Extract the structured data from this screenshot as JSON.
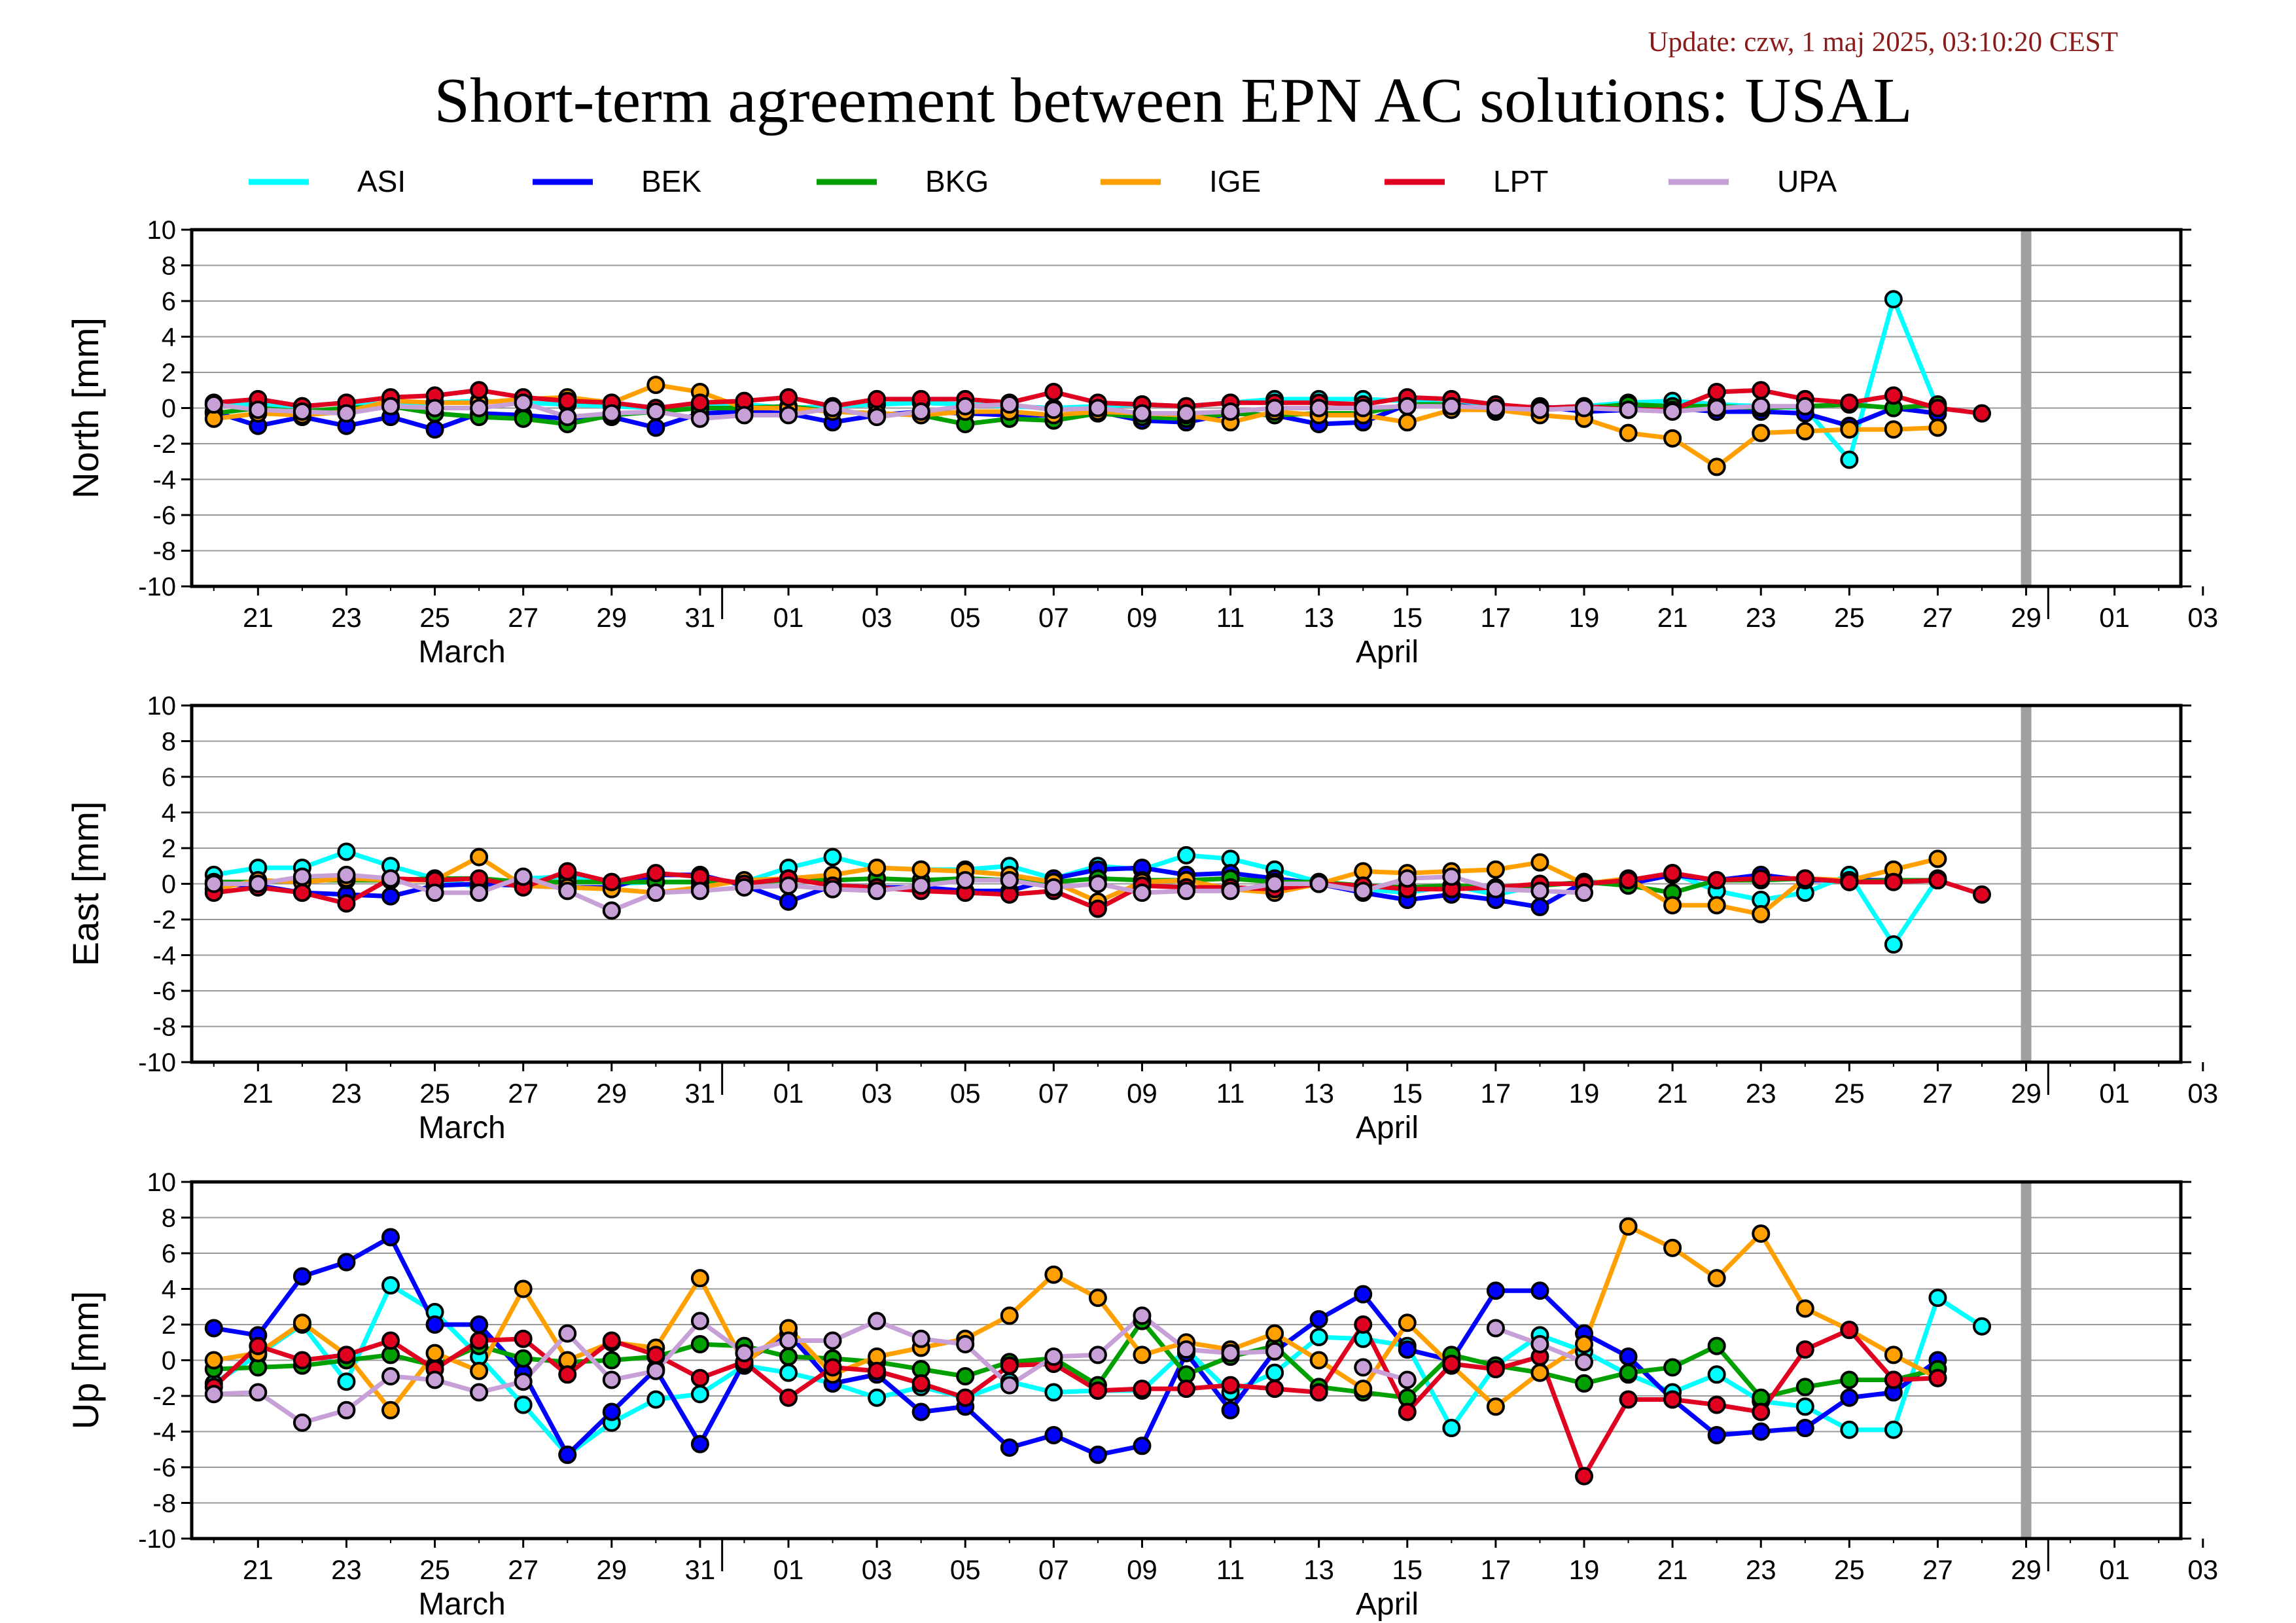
{
  "update": "Update: czw, 1 maj 2025, 03:10:20 CEST",
  "title": "Short-term agreement between EPN AC solutions: USAL",
  "colors": {
    "ASI": "#00ffff",
    "BEK": "#0000ff",
    "BKG": "#00a000",
    "IGE": "#ffa000",
    "LPT": "#e00020",
    "UPA": "#c8a0d8",
    "grid": "#999999",
    "gap_bar": "#a0a0a0"
  },
  "chart_data": {
    "type": "line",
    "grid": true,
    "legend_position": "top",
    "series_names": [
      "ASI",
      "BEK",
      "BKG",
      "IGE",
      "LPT",
      "UPA"
    ],
    "x_start": "2025-03-20",
    "x_end": "2025-05-03",
    "x_tick_labels": [
      "21",
      "23",
      "25",
      "27",
      "29",
      "31",
      "01",
      "03",
      "05",
      "07",
      "09",
      "11",
      "13",
      "15",
      "17",
      "19",
      "21",
      "23",
      "25",
      "27",
      "29",
      "01",
      "03"
    ],
    "month_labels": [
      "March",
      "April"
    ],
    "gap_bar_date": "2025-04-30",
    "x": [
      "2025-03-20",
      "2025-03-21",
      "2025-03-22",
      "2025-03-23",
      "2025-03-24",
      "2025-03-25",
      "2025-03-26",
      "2025-03-27",
      "2025-03-28",
      "2025-03-29",
      "2025-03-30",
      "2025-03-31",
      "2025-04-01",
      "2025-04-02",
      "2025-04-03",
      "2025-04-04",
      "2025-04-05",
      "2025-04-06",
      "2025-04-07",
      "2025-04-08",
      "2025-04-09",
      "2025-04-10",
      "2025-04-11",
      "2025-04-12",
      "2025-04-13",
      "2025-04-14",
      "2025-04-15",
      "2025-04-16",
      "2025-04-17",
      "2025-04-18",
      "2025-04-19",
      "2025-04-20",
      "2025-04-21",
      "2025-04-22",
      "2025-04-23",
      "2025-04-24",
      "2025-04-25",
      "2025-04-26",
      "2025-04-27",
      "2025-04-28",
      "2025-04-29"
    ],
    "panels": [
      {
        "ylabel": "North [mm]",
        "ylim": [
          -10,
          10
        ],
        "yticks": [
          "10",
          "8",
          "6",
          "4",
          "2",
          "0",
          "-2",
          "-4",
          "-6",
          "-8",
          "-10"
        ],
        "series": [
          {
            "name": "ASI",
            "values": [
              0.2,
              0.2,
              0.1,
              0.3,
              0.2,
              0.3,
              0.4,
              0.3,
              0.2,
              0.1,
              0.0,
              0.1,
              0.2,
              0.0,
              0.1,
              0.2,
              0.3,
              0.2,
              0.1,
              0.0,
              0.1,
              0.2,
              0.1,
              0.3,
              0.5,
              0.5,
              0.5,
              0.4,
              0.2,
              0.0,
              0.0,
              0.1,
              0.3,
              0.4,
              0.2,
              0.1,
              0.0,
              -2.9,
              6.1,
              0.0,
              null
            ]
          },
          {
            "name": "BEK",
            "values": [
              -0.2,
              -1.0,
              -0.5,
              -1.0,
              -0.5,
              -1.2,
              -0.3,
              -0.4,
              -0.6,
              -0.5,
              -1.1,
              -0.3,
              -0.2,
              -0.3,
              -0.8,
              -0.4,
              -0.2,
              -0.3,
              -0.4,
              -0.4,
              -0.2,
              -0.7,
              -0.8,
              -0.3,
              -0.4,
              -0.9,
              -0.8,
              0.2,
              0.2,
              -0.1,
              0.1,
              -0.2,
              -0.1,
              0.0,
              -0.2,
              -0.2,
              -0.3,
              -1.0,
              0.0,
              -0.3,
              null
            ]
          },
          {
            "name": "BKG",
            "values": [
              -0.3,
              0.0,
              -0.2,
              0.0,
              0.1,
              -0.3,
              -0.5,
              -0.6,
              -0.9,
              -0.4,
              -0.2,
              0.0,
              0.0,
              0.1,
              -0.2,
              -0.3,
              -0.4,
              -0.9,
              -0.6,
              -0.7,
              -0.3,
              -0.5,
              -0.6,
              -0.3,
              -0.4,
              -0.3,
              -0.3,
              0.2,
              0.2,
              -0.2,
              0.0,
              0.0,
              0.2,
              0.1,
              0.1,
              0.0,
              0.1,
              0.2,
              0.0,
              0.2,
              null
            ]
          },
          {
            "name": "IGE",
            "values": [
              -0.6,
              -0.3,
              -0.4,
              -0.2,
              0.4,
              0.3,
              0.3,
              0.5,
              0.6,
              0.3,
              1.3,
              0.9,
              0.0,
              0.0,
              -0.2,
              -0.3,
              -0.4,
              -0.2,
              -0.2,
              -0.4,
              -0.2,
              -0.3,
              -0.4,
              -0.8,
              -0.2,
              -0.4,
              -0.4,
              -0.8,
              -0.1,
              -0.1,
              -0.4,
              -0.6,
              -1.4,
              -1.7,
              -3.3,
              -1.4,
              -1.3,
              -1.2,
              -1.2,
              -1.1,
              null
            ]
          },
          {
            "name": "LPT",
            "values": [
              0.3,
              0.5,
              0.1,
              0.3,
              0.6,
              0.7,
              1.0,
              0.6,
              0.4,
              0.3,
              0.0,
              0.3,
              0.4,
              0.6,
              0.1,
              0.5,
              0.5,
              0.5,
              0.3,
              0.9,
              0.3,
              0.2,
              0.1,
              0.3,
              0.3,
              0.3,
              0.2,
              0.6,
              0.5,
              0.2,
              0.0,
              0.1,
              -0.1,
              -0.1,
              0.9,
              1.0,
              0.5,
              0.3,
              0.7,
              0.0,
              -0.3
            ]
          },
          {
            "name": "UPA",
            "values": [
              0.2,
              -0.1,
              -0.2,
              -0.3,
              0.1,
              0.0,
              0.0,
              0.3,
              -0.5,
              -0.3,
              -0.2,
              -0.6,
              -0.4,
              -0.4,
              0.0,
              -0.5,
              -0.2,
              0.1,
              0.2,
              -0.1,
              0.0,
              -0.3,
              -0.3,
              -0.2,
              0.0,
              0.0,
              0.0,
              0.1,
              0.1,
              0.0,
              -0.1,
              0.0,
              -0.1,
              -0.2,
              0.0,
              0.1,
              0.1,
              null,
              null,
              null,
              null
            ]
          }
        ]
      },
      {
        "ylabel": "East [mm]",
        "ylim": [
          -10,
          10
        ],
        "yticks": [
          "10",
          "8",
          "6",
          "4",
          "2",
          "0",
          "-2",
          "-4",
          "-6",
          "-8",
          "-10"
        ],
        "series": [
          {
            "name": "ASI",
            "values": [
              0.5,
              0.9,
              0.9,
              1.8,
              1.0,
              0.3,
              -0.2,
              0.3,
              0.4,
              0.0,
              0.1,
              0.1,
              0.1,
              0.9,
              1.5,
              0.9,
              0.8,
              0.8,
              1.0,
              0.3,
              1.0,
              0.8,
              1.6,
              1.4,
              0.8,
              0.1,
              -0.3,
              -0.5,
              -0.1,
              -0.6,
              -0.1,
              0.1,
              0.1,
              0.6,
              -0.4,
              -0.9,
              -0.5,
              0.5,
              -3.4,
              0.3,
              null
            ]
          },
          {
            "name": "BEK",
            "values": [
              0.0,
              -0.1,
              -0.5,
              -0.6,
              -0.7,
              -0.1,
              0.0,
              -0.1,
              -0.2,
              -0.2,
              0.5,
              0.5,
              -0.1,
              -1.0,
              -0.1,
              -0.2,
              -0.2,
              -0.4,
              -0.4,
              0.3,
              0.8,
              0.9,
              0.5,
              0.6,
              0.3,
              0.0,
              -0.5,
              -0.9,
              -0.6,
              -0.9,
              -1.3,
              0.1,
              0.0,
              0.5,
              0.2,
              0.5,
              0.2,
              0.2,
              0.2,
              0.2,
              null
            ]
          },
          {
            "name": "BKG",
            "values": [
              0.1,
              0.1,
              0.2,
              0.2,
              0.2,
              0.3,
              0.3,
              0.1,
              0.1,
              0.1,
              0.1,
              0.1,
              0.1,
              0.2,
              0.2,
              0.3,
              0.2,
              0.3,
              0.2,
              0.1,
              0.3,
              0.2,
              0.2,
              0.3,
              0.1,
              0.1,
              -0.1,
              -0.2,
              -0.1,
              -0.2,
              -0.1,
              0.1,
              -0.1,
              -0.5,
              0.2,
              0.2,
              0.3,
              0.1,
              0.2,
              0.2,
              null
            ]
          },
          {
            "name": "IGE",
            "values": [
              -0.3,
              0.2,
              0.1,
              0.3,
              0.2,
              0.2,
              1.5,
              -0.1,
              -0.2,
              -0.3,
              -0.5,
              -0.2,
              0.2,
              0.3,
              0.5,
              0.9,
              0.8,
              0.7,
              0.5,
              0.1,
              -1.0,
              0.1,
              0.2,
              -0.3,
              -0.5,
              0.0,
              0.7,
              0.6,
              0.7,
              0.8,
              1.2,
              0.0,
              0.3,
              -1.2,
              -1.2,
              -1.7,
              0.3,
              0.2,
              0.8,
              1.4,
              null
            ]
          },
          {
            "name": "LPT",
            "values": [
              -0.5,
              -0.2,
              -0.5,
              -1.1,
              0.3,
              0.2,
              0.3,
              -0.2,
              0.7,
              0.1,
              0.6,
              0.4,
              0.0,
              0.3,
              -0.1,
              -0.2,
              -0.4,
              -0.5,
              -0.6,
              -0.4,
              -1.4,
              -0.1,
              -0.2,
              -0.2,
              -0.3,
              0.0,
              -0.1,
              -0.3,
              -0.3,
              -0.2,
              0.0,
              0.0,
              0.2,
              0.6,
              0.2,
              0.3,
              0.3,
              0.1,
              0.1,
              0.2,
              -0.6
            ]
          },
          {
            "name": "UPA",
            "values": [
              0.0,
              0.0,
              0.4,
              0.5,
              0.3,
              -0.5,
              -0.5,
              0.4,
              -0.4,
              -1.5,
              -0.5,
              -0.4,
              -0.2,
              -0.1,
              -0.3,
              -0.4,
              -0.1,
              0.2,
              0.2,
              -0.2,
              0.0,
              -0.5,
              -0.4,
              -0.4,
              0.0,
              0.0,
              -0.4,
              0.3,
              0.4,
              -0.3,
              -0.4,
              -0.5,
              null,
              null,
              null,
              null,
              null,
              null,
              null,
              null,
              null
            ]
          }
        ]
      },
      {
        "ylabel": "Up [mm]",
        "ylim": [
          -10,
          10
        ],
        "yticks": [
          "10",
          "8",
          "6",
          "4",
          "2",
          "0",
          "-2",
          "-4",
          "-6",
          "-8",
          "-10"
        ],
        "series": [
          {
            "name": "ASI",
            "values": [
              -1.3,
              0.3,
              2.0,
              -1.2,
              4.2,
              2.7,
              0.2,
              -2.5,
              -5.3,
              -3.5,
              -2.2,
              -1.9,
              -0.3,
              -0.7,
              -1.3,
              -2.1,
              -1.5,
              -2.1,
              -1.2,
              -1.8,
              -1.7,
              -1.7,
              0.6,
              -1.8,
              -0.7,
              1.3,
              1.2,
              0.8,
              -3.8,
              -0.3,
              1.4,
              0.5,
              -0.8,
              -1.8,
              -0.8,
              -2.3,
              -2.6,
              -3.9,
              -3.9,
              3.5,
              1.9
            ]
          },
          {
            "name": "BEK",
            "values": [
              1.8,
              1.4,
              4.7,
              5.5,
              6.9,
              2.0,
              2.0,
              -0.7,
              -5.3,
              -2.9,
              -0.5,
              -4.7,
              -0.1,
              1.5,
              -1.3,
              -0.8,
              -2.9,
              -2.6,
              -4.9,
              -4.2,
              -5.3,
              -4.8,
              0.4,
              -2.8,
              0.5,
              2.3,
              3.7,
              0.6,
              0.0,
              3.9,
              3.9,
              1.5,
              0.2,
              -2.2,
              -4.2,
              -4.0,
              -3.8,
              -2.1,
              -1.8,
              0.0,
              null
            ]
          },
          {
            "name": "BKG",
            "values": [
              -0.5,
              -0.4,
              -0.3,
              0.0,
              0.3,
              -0.3,
              0.8,
              0.1,
              -0.1,
              0.0,
              0.2,
              0.9,
              0.8,
              0.2,
              0.1,
              -0.1,
              -0.5,
              -0.9,
              -0.1,
              0.1,
              -1.4,
              2.2,
              -0.8,
              0.2,
              0.8,
              -1.5,
              -1.8,
              -2.1,
              0.3,
              -0.3,
              -0.7,
              -1.3,
              -0.7,
              -0.4,
              0.8,
              -2.1,
              -1.5,
              -1.1,
              -1.1,
              -0.5,
              null
            ]
          },
          {
            "name": "IGE",
            "values": [
              0.0,
              0.4,
              2.1,
              0.3,
              -2.8,
              0.4,
              -0.6,
              4.0,
              0.0,
              1.0,
              0.7,
              4.6,
              -0.2,
              1.8,
              -0.8,
              0.2,
              0.7,
              1.2,
              2.5,
              4.8,
              3.5,
              0.3,
              1.0,
              0.6,
              1.5,
              0.0,
              -1.6,
              2.1,
              -0.3,
              -2.6,
              -0.7,
              0.9,
              7.5,
              6.3,
              4.6,
              7.1,
              2.9,
              1.7,
              0.3,
              -1.0,
              null
            ]
          },
          {
            "name": "LPT",
            "values": [
              -1.5,
              0.8,
              0.0,
              0.3,
              1.1,
              -0.5,
              1.1,
              1.2,
              -0.8,
              1.1,
              0.3,
              -1.0,
              -0.1,
              -2.1,
              -0.4,
              -0.6,
              -1.3,
              -2.1,
              -0.3,
              -0.2,
              -1.7,
              -1.6,
              -1.6,
              -1.4,
              -1.6,
              -1.8,
              2.0,
              -2.9,
              -0.2,
              -0.5,
              0.2,
              -6.5,
              -2.2,
              -2.2,
              -2.5,
              -2.9,
              0.6,
              1.7,
              -1.1,
              -1.0,
              null
            ]
          },
          {
            "name": "UPA",
            "values": [
              -1.9,
              -1.8,
              -3.5,
              -2.8,
              -0.9,
              -1.1,
              -1.8,
              -1.2,
              1.5,
              -1.1,
              -0.6,
              2.2,
              0.4,
              1.1,
              1.1,
              2.2,
              1.2,
              0.9,
              -1.4,
              0.2,
              0.3,
              2.5,
              0.6,
              0.4,
              0.5,
              null,
              -0.4,
              -1.1,
              null,
              1.8,
              0.9,
              -0.1,
              null,
              null,
              null,
              null,
              null,
              null,
              null,
              null,
              null
            ]
          }
        ]
      }
    ]
  }
}
